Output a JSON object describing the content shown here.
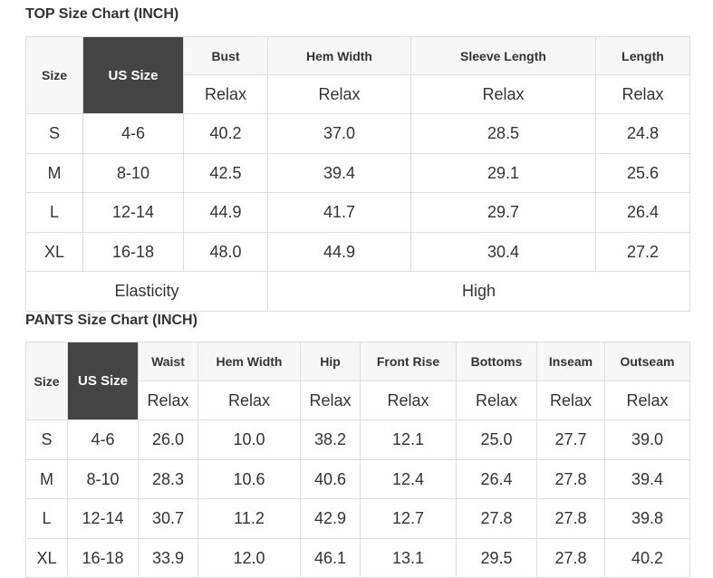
{
  "top": {
    "title": "TOP Size Chart (INCH)",
    "size_label": "Size",
    "us_size_label": "US Size",
    "columns": [
      "Bust",
      "Hem Width",
      "Sleeve Length",
      "Length"
    ],
    "fit": [
      "Relax",
      "Relax",
      "Relax",
      "Relax"
    ],
    "rows": [
      [
        "S",
        "4-6",
        "40.2",
        "37.0",
        "28.5",
        "24.8"
      ],
      [
        "M",
        "8-10",
        "42.5",
        "39.4",
        "29.1",
        "25.6"
      ],
      [
        "L",
        "12-14",
        "44.9",
        "41.7",
        "29.7",
        "26.4"
      ],
      [
        "XL",
        "16-18",
        "48.0",
        "44.9",
        "30.4",
        "27.2"
      ]
    ],
    "elasticity_label": "Elasticity",
    "elasticity_value": "High"
  },
  "pants": {
    "title": "PANTS Size Chart (INCH)",
    "size_label": "Size",
    "us_size_label": "US Size",
    "columns": [
      "Waist",
      "Hem Width",
      "Hip",
      "Front Rise",
      "Bottoms",
      "Inseam",
      "Outseam"
    ],
    "fit": [
      "Relax",
      "Relax",
      "Relax",
      "Relax",
      "Relax",
      "Relax",
      "Relax"
    ],
    "rows": [
      [
        "S",
        "4-6",
        "26.0",
        "10.0",
        "38.2",
        "12.1",
        "25.0",
        "27.7",
        "39.0"
      ],
      [
        "M",
        "8-10",
        "28.3",
        "10.6",
        "40.6",
        "12.4",
        "26.4",
        "27.8",
        "39.4"
      ],
      [
        "L",
        "12-14",
        "30.7",
        "11.2",
        "42.9",
        "12.7",
        "27.8",
        "27.8",
        "39.8"
      ],
      [
        "XL",
        "16-18",
        "33.9",
        "12.0",
        "46.1",
        "13.1",
        "29.5",
        "27.8",
        "40.2"
      ]
    ]
  },
  "colors": {
    "us_size_bg": "#444444",
    "header_bg": "#f7f7f7",
    "border": "#dddddd"
  }
}
